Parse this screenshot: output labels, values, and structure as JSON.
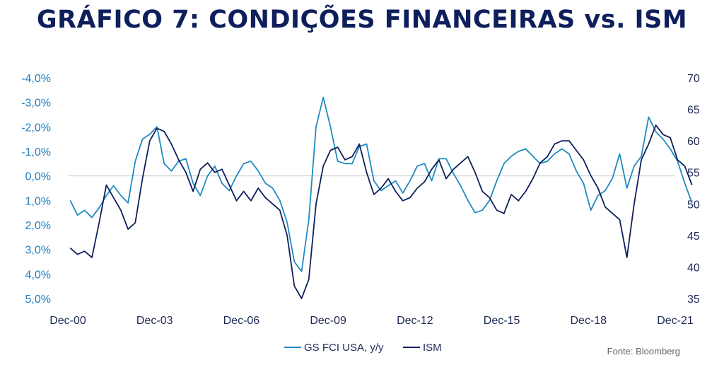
{
  "title": "GRÁFICO 7: CONDIÇÕES FINANCEIRAS vs. ISM",
  "source": "Fonte: Bloomberg",
  "colors": {
    "fci": "#1f8ac0",
    "ism": "#0f1f5c",
    "title": "#0f1f5c",
    "axis": "#cccccc"
  },
  "chart_data": {
    "type": "line",
    "left_axis": {
      "label": "",
      "ticks": [
        "-4,0%",
        "-3,0%",
        "-2,0%",
        "-1,0%",
        "0,0%",
        "1,0%",
        "2,0%",
        "3,0%",
        "4,0%",
        "5,0%"
      ],
      "range": [
        -4.0,
        5.0
      ],
      "inverted": true
    },
    "right_axis": {
      "label": "",
      "ticks": [
        "70",
        "65",
        "60",
        "55",
        "50",
        "45",
        "40",
        "35"
      ],
      "range": [
        35,
        70
      ]
    },
    "x_axis": {
      "ticks": [
        "Dec-00",
        "Dec-03",
        "Dec-06",
        "Dec-09",
        "Dec-12",
        "Dec-15",
        "Dec-18",
        "Dec-21"
      ],
      "range": [
        2000.92,
        2021.92
      ]
    },
    "legend": {
      "placement": "bottom-center"
    },
    "series": [
      {
        "name": "GS FCI USA, y/y",
        "axis": "left",
        "x": [
          2001.0,
          2001.25,
          2001.5,
          2001.75,
          2002.0,
          2002.25,
          2002.5,
          2002.75,
          2003.0,
          2003.25,
          2003.5,
          2003.75,
          2004.0,
          2004.25,
          2004.5,
          2004.75,
          2005.0,
          2005.25,
          2005.5,
          2005.75,
          2006.0,
          2006.25,
          2006.5,
          2006.75,
          2007.0,
          2007.25,
          2007.5,
          2007.75,
          2008.0,
          2008.25,
          2008.5,
          2008.75,
          2009.0,
          2009.25,
          2009.5,
          2009.75,
          2010.0,
          2010.25,
          2010.5,
          2010.75,
          2011.0,
          2011.25,
          2011.5,
          2011.75,
          2012.0,
          2012.25,
          2012.5,
          2012.75,
          2013.0,
          2013.25,
          2013.5,
          2013.75,
          2014.0,
          2014.25,
          2014.5,
          2014.75,
          2015.0,
          2015.25,
          2015.5,
          2015.75,
          2016.0,
          2016.25,
          2016.5,
          2016.75,
          2017.0,
          2017.25,
          2017.5,
          2017.75,
          2018.0,
          2018.25,
          2018.5,
          2018.75,
          2019.0,
          2019.25,
          2019.5,
          2019.75,
          2020.0,
          2020.25,
          2020.5,
          2020.75,
          2021.0,
          2021.25,
          2021.5,
          2021.75,
          2022.0,
          2022.25,
          2022.5
        ],
        "values": [
          1.0,
          1.6,
          1.4,
          1.7,
          1.3,
          0.8,
          0.4,
          0.8,
          1.1,
          -0.6,
          -1.5,
          -1.7,
          -2.0,
          -0.5,
          -0.2,
          -0.6,
          -0.7,
          0.3,
          0.8,
          0.0,
          -0.4,
          0.3,
          0.6,
          0.0,
          -0.5,
          -0.6,
          -0.2,
          0.3,
          0.5,
          1.0,
          1.9,
          3.5,
          3.9,
          1.8,
          -2.0,
          -3.2,
          -2.0,
          -0.6,
          -0.5,
          -0.5,
          -1.2,
          -1.3,
          0.2,
          0.6,
          0.4,
          0.2,
          0.7,
          0.2,
          -0.4,
          -0.5,
          0.2,
          -0.7,
          -0.7,
          -0.1,
          0.4,
          1.0,
          1.5,
          1.4,
          1.0,
          0.2,
          -0.5,
          -0.8,
          -1.0,
          -1.1,
          -0.8,
          -0.5,
          -0.6,
          -0.9,
          -1.1,
          -0.9,
          -0.2,
          0.3,
          1.4,
          0.8,
          0.6,
          0.1,
          -0.9,
          0.5,
          -0.4,
          -0.8,
          -2.4,
          -1.8,
          -1.5,
          -1.1,
          -0.6,
          0.3,
          1.1
        ]
      },
      {
        "name": "ISM",
        "axis": "right",
        "x": [
          2001.0,
          2001.25,
          2001.5,
          2001.75,
          2002.0,
          2002.25,
          2002.5,
          2002.75,
          2003.0,
          2003.25,
          2003.5,
          2003.75,
          2004.0,
          2004.25,
          2004.5,
          2004.75,
          2005.0,
          2005.25,
          2005.5,
          2005.75,
          2006.0,
          2006.25,
          2006.5,
          2006.75,
          2007.0,
          2007.25,
          2007.5,
          2007.75,
          2008.0,
          2008.25,
          2008.5,
          2008.75,
          2009.0,
          2009.25,
          2009.5,
          2009.75,
          2010.0,
          2010.25,
          2010.5,
          2010.75,
          2011.0,
          2011.25,
          2011.5,
          2011.75,
          2012.0,
          2012.25,
          2012.5,
          2012.75,
          2013.0,
          2013.25,
          2013.5,
          2013.75,
          2014.0,
          2014.25,
          2014.5,
          2014.75,
          2015.0,
          2015.25,
          2015.5,
          2015.75,
          2016.0,
          2016.25,
          2016.5,
          2016.75,
          2017.0,
          2017.25,
          2017.5,
          2017.75,
          2018.0,
          2018.25,
          2018.5,
          2018.75,
          2019.0,
          2019.25,
          2019.5,
          2019.75,
          2020.0,
          2020.25,
          2020.5,
          2020.75,
          2021.0,
          2021.25,
          2021.5,
          2021.75,
          2022.0,
          2022.25,
          2022.5
        ],
        "values": [
          43.0,
          42.0,
          42.5,
          41.5,
          47.0,
          53.0,
          51.0,
          49.0,
          46.0,
          47.0,
          54.0,
          60.0,
          62.0,
          61.5,
          59.5,
          57.0,
          55.0,
          52.0,
          55.5,
          56.5,
          55.0,
          55.5,
          53.0,
          50.5,
          52.0,
          50.5,
          52.5,
          51.0,
          50.0,
          49.0,
          45.0,
          37.0,
          35.0,
          38.0,
          50.0,
          56.0,
          58.5,
          59.0,
          57.0,
          57.5,
          59.5,
          55.0,
          51.5,
          52.5,
          54.0,
          52.0,
          50.5,
          51.0,
          52.5,
          53.5,
          55.5,
          57.0,
          54.0,
          55.5,
          56.5,
          57.5,
          55.0,
          52.0,
          51.0,
          49.0,
          48.5,
          51.5,
          50.5,
          52.0,
          54.0,
          56.5,
          57.5,
          59.5,
          60.0,
          60.0,
          58.5,
          57.0,
          54.5,
          52.5,
          49.5,
          48.5,
          47.5,
          41.5,
          50.0,
          57.0,
          59.5,
          62.5,
          61.0,
          60.5,
          57.0,
          56.0,
          53.0
        ]
      }
    ]
  },
  "legend_labels": {
    "fci": "GS FCI USA, y/y",
    "ism": "ISM"
  }
}
